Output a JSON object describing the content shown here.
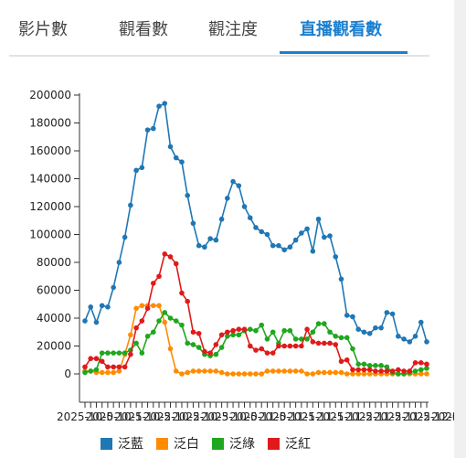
{
  "tabs": [
    {
      "label": "影片數",
      "active": false
    },
    {
      "label": "觀看數",
      "active": false
    },
    {
      "label": "觀注度",
      "active": false
    },
    {
      "label": "直播觀看數",
      "active": true
    }
  ],
  "colors": {
    "accent": "#1a7fd0",
    "泛藍": "#1f77b4",
    "泛白": "#ff8c00",
    "泛綠": "#1fa71f",
    "泛紅": "#e01a1a"
  },
  "chart_data": {
    "type": "line",
    "ylim": [
      0,
      200000
    ],
    "yticks": [
      "0",
      "20000",
      "40000",
      "60000",
      "80000",
      "100000",
      "120000",
      "140000",
      "160000",
      "180000",
      "200000"
    ],
    "xtick_labels": [
      "2025-10-0",
      "2025-10-1",
      "2025-10-2",
      "2025-10-2",
      "2025-10-3",
      "2025-10-0",
      "2025-11-0",
      "2025-11-1",
      "2025-11-1",
      "2025-11-2",
      "2025-11-2",
      "2025-11-2",
      "2025-12-0",
      "2025-12-0"
    ],
    "legend_position": "bottom",
    "series": [
      {
        "name": "泛藍",
        "values": [
          38000,
          48000,
          37000,
          49000,
          48000,
          62000,
          80000,
          98000,
          121000,
          146000,
          148000,
          175000,
          176000,
          192000,
          194000,
          163000,
          155000,
          152000,
          128000,
          108000,
          92000,
          91000,
          97000,
          96000,
          111000,
          126000,
          138000,
          135000,
          120000,
          112000,
          105000,
          102000,
          100000,
          92000,
          92000,
          89000,
          91000,
          96000,
          101000,
          104000,
          88000,
          111000,
          98000,
          99000,
          84000,
          68000,
          42000,
          41000,
          32000,
          30000,
          29000,
          33000,
          33000,
          44000,
          43000,
          27000,
          25000,
          23000,
          27000,
          37000,
          23000
        ]
      },
      {
        "name": "泛白",
        "values": [
          2000,
          2000,
          1000,
          1000,
          1000,
          1000,
          2000,
          14000,
          28000,
          47000,
          49000,
          49000,
          49000,
          49000,
          37000,
          18000,
          2000,
          0,
          1000,
          2000,
          2000,
          2000,
          2000,
          2000,
          1000,
          0,
          0,
          0,
          0,
          0,
          0,
          0,
          2000,
          2000,
          2000,
          2000,
          2000,
          2000,
          2000,
          0,
          0,
          1000,
          1000,
          1000,
          1000,
          1000,
          0,
          0,
          0,
          0,
          0,
          0,
          0,
          0,
          0,
          0,
          0,
          0,
          0,
          0,
          0
        ]
      },
      {
        "name": "泛綠",
        "values": [
          1000,
          2000,
          3000,
          15000,
          15000,
          15000,
          15000,
          15000,
          17000,
          22000,
          15000,
          27000,
          30000,
          38000,
          44000,
          40000,
          38000,
          35000,
          22000,
          21000,
          19000,
          14000,
          13000,
          14000,
          19000,
          27000,
          28000,
          28000,
          31000,
          32000,
          31000,
          35000,
          25000,
          30000,
          22000,
          31000,
          31000,
          25000,
          25000,
          25000,
          30000,
          36000,
          36000,
          30000,
          27000,
          26000,
          26000,
          18000,
          7000,
          7000,
          6000,
          6000,
          6000,
          5000,
          1000,
          0,
          0,
          1000,
          2000,
          3000,
          4000
        ]
      },
      {
        "name": "泛紅",
        "values": [
          5000,
          11000,
          11000,
          9000,
          5000,
          5000,
          5000,
          5000,
          14000,
          33000,
          38000,
          47000,
          65000,
          70000,
          86000,
          84000,
          79000,
          58000,
          52000,
          30000,
          29000,
          16000,
          15000,
          21000,
          28000,
          30000,
          31000,
          32000,
          32000,
          20000,
          17000,
          18000,
          15000,
          15000,
          20000,
          20000,
          20000,
          20000,
          20000,
          32000,
          23000,
          22000,
          22000,
          22000,
          21000,
          9000,
          10000,
          3000,
          3000,
          3000,
          3000,
          2000,
          2000,
          2000,
          2000,
          3000,
          2000,
          2000,
          8000,
          8000,
          7000
        ]
      }
    ]
  }
}
